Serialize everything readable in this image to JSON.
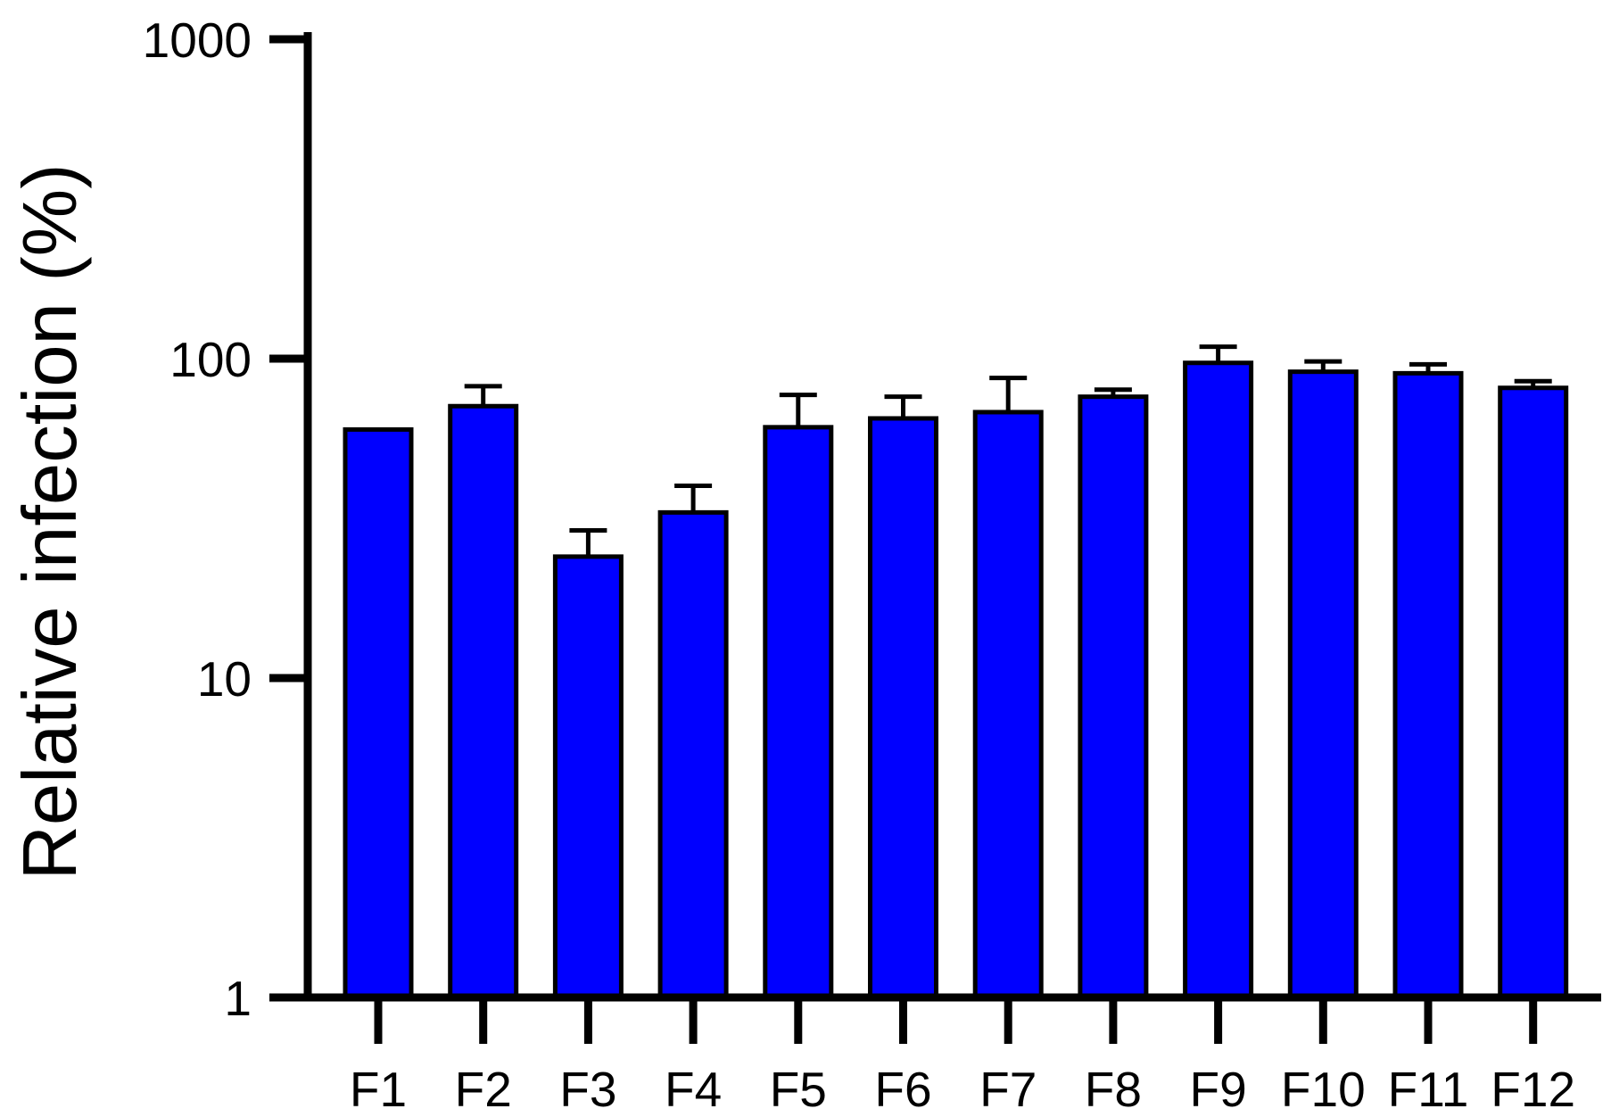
{
  "chart_data": {
    "type": "bar",
    "title": "",
    "xlabel": "",
    "ylabel": "Relative infection (%)",
    "yscale": "log",
    "ylim": [
      1,
      1000
    ],
    "yticks": [
      1,
      10,
      100,
      1000
    ],
    "ytick_labels": [
      "1",
      "10",
      "100",
      "1000"
    ],
    "grid": false,
    "legend": "none",
    "colors": {
      "bar": "#0000ff",
      "outline": "#000000"
    },
    "categories": [
      "F1",
      "F2",
      "F3",
      "F4",
      "F5",
      "F6",
      "F7",
      "F8",
      "F9",
      "F10",
      "F11",
      "F12"
    ],
    "values": [
      60,
      71,
      24,
      33,
      61,
      65,
      68,
      76,
      97,
      91,
      90,
      81
    ],
    "error_upper": [
      60,
      82,
      29,
      40,
      77,
      76,
      87,
      80,
      109,
      98,
      96,
      85
    ]
  }
}
